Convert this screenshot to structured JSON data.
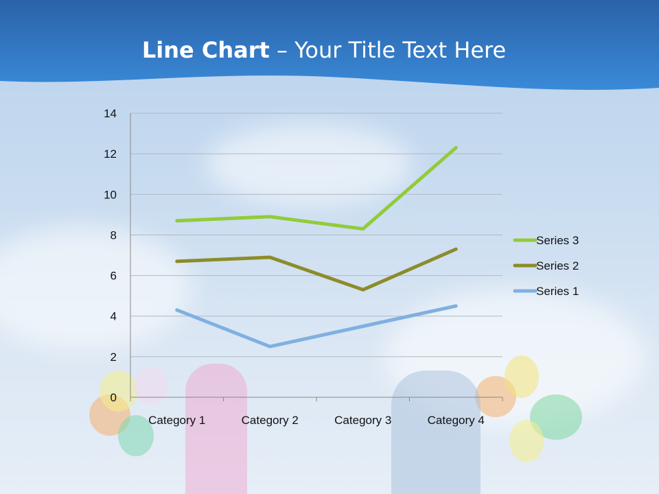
{
  "slide": {
    "title_bold": "Line Chart",
    "title_rest": " – Your Title Text Here"
  },
  "colors": {
    "header": "#2f7ac7",
    "series1": "#7fb0e0",
    "series2": "#8c8c2a",
    "series3": "#92cb3a",
    "grid": "#b0b8c0"
  },
  "chart_data": {
    "type": "line",
    "categories": [
      "Category 1",
      "Category 2",
      "Category 3",
      "Category 4"
    ],
    "series": [
      {
        "name": "Series 1",
        "values": [
          4.3,
          2.5,
          3.5,
          4.5
        ],
        "color": "#7fb0e0"
      },
      {
        "name": "Series 2",
        "values": [
          6.7,
          6.9,
          5.3,
          7.3
        ],
        "color": "#8c8c2a"
      },
      {
        "name": "Series 3",
        "values": [
          8.7,
          8.9,
          8.3,
          12.3
        ],
        "color": "#92cb3a"
      }
    ],
    "ylim": [
      0,
      14
    ],
    "yticks": [
      "0",
      "2",
      "4",
      "6",
      "8",
      "10",
      "12",
      "14"
    ],
    "grid": true,
    "legend": "right"
  }
}
